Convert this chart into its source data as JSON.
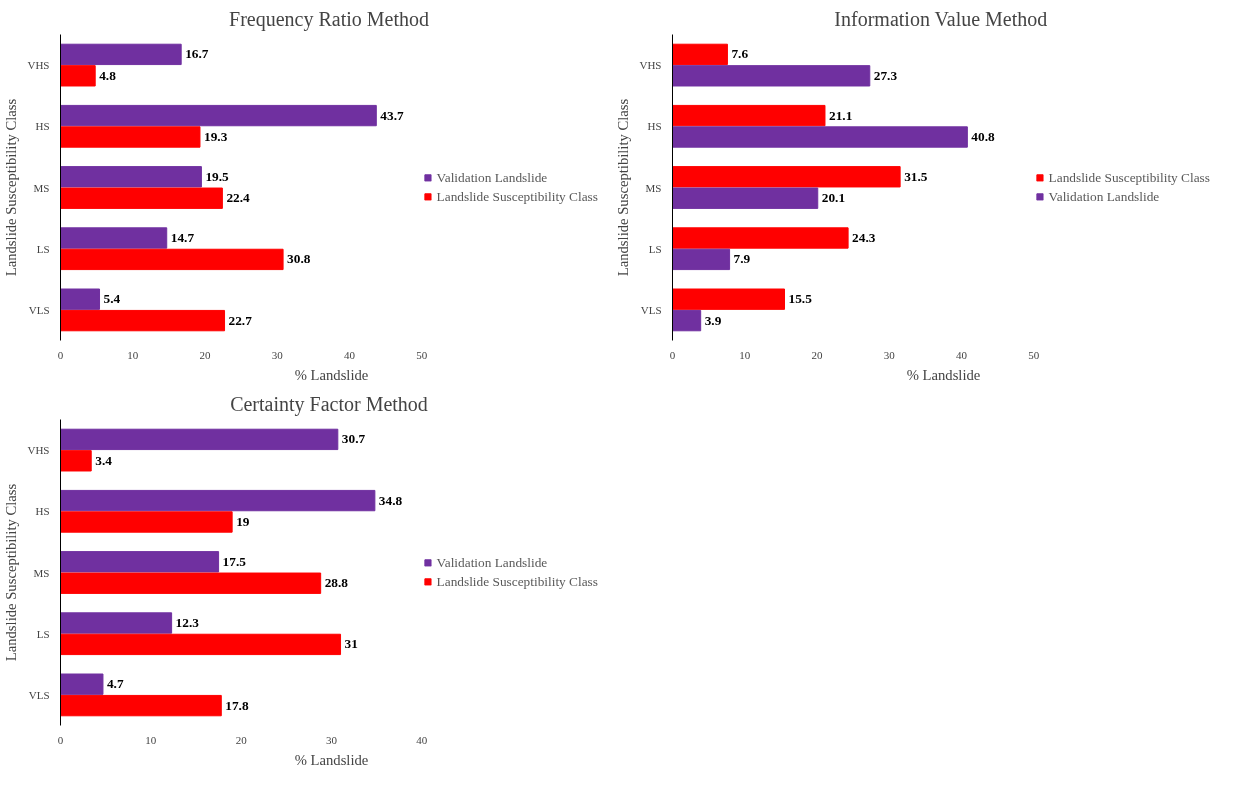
{
  "chart_data": [
    {
      "type": "bar",
      "orientation": "horizontal",
      "title": "Frequency  Ratio Method",
      "xlabel": "% Landslide",
      "ylabel": "Landslide Susceptibility Class",
      "categories": [
        "VHS",
        "HS",
        "MS",
        "LS",
        "VLS"
      ],
      "xlim": [
        0,
        50
      ],
      "xticks": [
        0,
        10,
        20,
        30,
        40,
        50
      ],
      "data_labels": true,
      "legend": "right",
      "grid": false,
      "series": [
        {
          "name": "Validation Landslide",
          "color": "#7030a0",
          "values": [
            16.7,
            43.7,
            19.5,
            14.7,
            5.4
          ]
        },
        {
          "name": "Landslide Susceptibility Class",
          "color": "#ff0000",
          "values": [
            4.8,
            19.3,
            22.4,
            30.8,
            22.7
          ]
        }
      ]
    },
    {
      "type": "bar",
      "orientation": "horizontal",
      "title": "Information  Value Method",
      "xlabel": "% Landslide",
      "ylabel": "Landslide Susceptibility Class",
      "categories": [
        "VHS",
        "HS",
        "MS",
        "LS",
        "VLS"
      ],
      "xlim": [
        0,
        50
      ],
      "xticks": [
        0,
        10,
        20,
        30,
        40,
        50
      ],
      "data_labels": true,
      "legend": "right",
      "grid": false,
      "series": [
        {
          "name": "Landslide Susceptibility Class",
          "color": "#ff0000",
          "values": [
            7.6,
            21.1,
            31.5,
            24.3,
            15.5
          ]
        },
        {
          "name": "Validation Landslide",
          "color": "#7030a0",
          "values": [
            27.3,
            40.8,
            20.1,
            7.9,
            3.9
          ]
        }
      ]
    },
    {
      "type": "bar",
      "orientation": "horizontal",
      "title": "Certainty  Factor Method",
      "xlabel": "% Landslide",
      "ylabel": "Landslide Susceptibility Class",
      "categories": [
        "VHS",
        "HS",
        "MS",
        "LS",
        "VLS"
      ],
      "xlim": [
        0,
        40
      ],
      "xticks": [
        0,
        10,
        20,
        30,
        40
      ],
      "data_labels": true,
      "legend": "right",
      "grid": false,
      "series": [
        {
          "name": "Validation Landslide",
          "color": "#7030a0",
          "values": [
            30.7,
            34.8,
            17.5,
            12.3,
            4.7
          ]
        },
        {
          "name": "Landslide Susceptibility Class",
          "color": "#ff0000",
          "values": [
            3.4,
            19,
            28.8,
            31,
            17.8
          ]
        }
      ]
    }
  ]
}
